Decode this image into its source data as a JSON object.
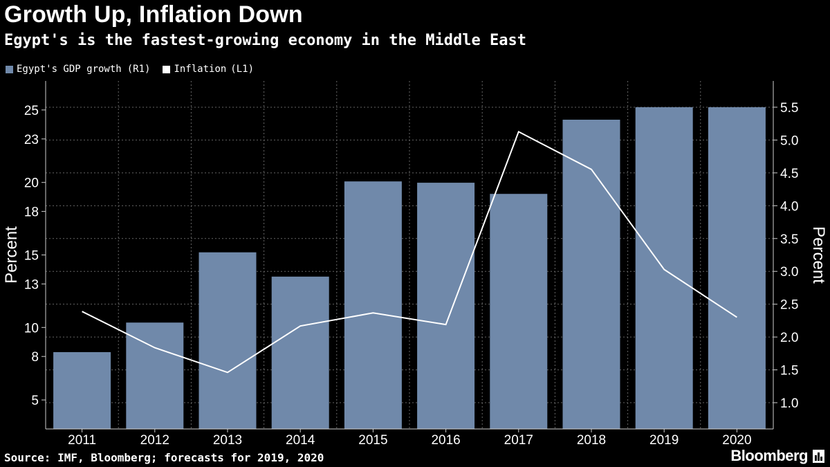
{
  "title": "Growth Up, Inflation Down",
  "subtitle": "Egypt's is the fastest-growing economy in the Middle East",
  "legend": {
    "gdp_label": "Egypt's GDP growth",
    "gdp_axis_tag": "(R1)",
    "inflation_label": "Inflation",
    "inflation_axis_tag": "(L1)"
  },
  "source": "Source: IMF, Bloomberg; forecasts for 2019, 2020",
  "brand": "Bloomberg",
  "colors": {
    "background": "#000000",
    "bar": "#7089AA",
    "line": "#FFFFFF",
    "grid": "#666666"
  },
  "chart_data": {
    "type": "bar",
    "categories": [
      "2011",
      "2012",
      "2013",
      "2014",
      "2015",
      "2016",
      "2017",
      "2018",
      "2019",
      "2020"
    ],
    "series": [
      {
        "name": "Egypt's GDP growth",
        "type": "bar",
        "axis": "right",
        "values": [
          1.77,
          2.22,
          3.29,
          2.92,
          4.37,
          4.35,
          4.18,
          5.31,
          5.5,
          5.5
        ]
      },
      {
        "name": "Inflation",
        "type": "line",
        "axis": "left",
        "values": [
          11.1,
          8.6,
          6.9,
          10.1,
          11.0,
          10.2,
          23.5,
          20.9,
          14.0,
          10.7
        ]
      }
    ],
    "left_axis": {
      "label": "Percent",
      "ticks": [
        5,
        8,
        10,
        13,
        15,
        18,
        20,
        23,
        25
      ],
      "tick_labels": [
        "5",
        "8",
        "10",
        "13",
        "15",
        "18",
        "20",
        "23",
        "25"
      ],
      "range": [
        3,
        27
      ]
    },
    "right_axis": {
      "label": "Percent",
      "ticks": [
        1.0,
        1.5,
        2.0,
        2.5,
        3.0,
        3.5,
        4.0,
        4.5,
        5.0,
        5.5
      ],
      "tick_labels": [
        "1.0",
        "1.5",
        "2.0",
        "2.5",
        "3.0",
        "3.5",
        "4.0",
        "4.5",
        "5.0",
        "5.5"
      ],
      "range": [
        0.6,
        5.9
      ]
    },
    "grid": true,
    "legend_position": "top-left"
  }
}
